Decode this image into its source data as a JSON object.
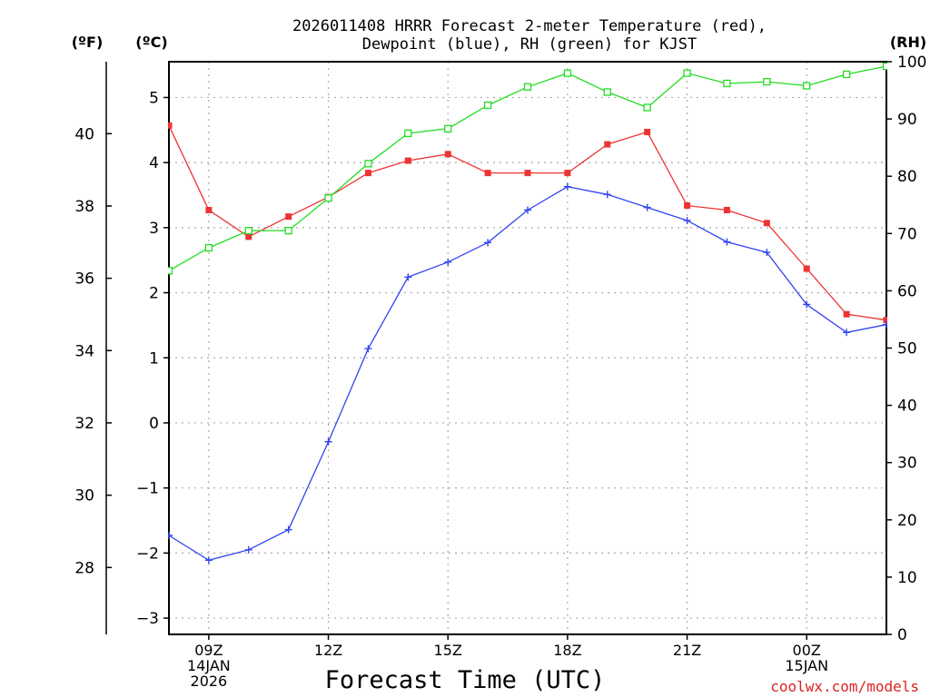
{
  "chart_data": {
    "type": "line",
    "title_line1": "2026011408 HRRR Forecast 2-meter Temperature (red),",
    "title_line2": "Dewpoint (blue), RH (green) for KJST",
    "xlabel": "Forecast Time (UTC)",
    "left_outer_label": "(ºF)",
    "left_inner_label": "(ºC)",
    "right_label": "(RH)",
    "credit": "coolwx.com/models",
    "x": [
      8,
      9,
      10,
      11,
      12,
      13,
      14,
      15,
      16,
      17,
      18,
      19,
      20,
      21,
      22,
      23,
      24,
      25,
      26
    ],
    "xlim": [
      8,
      26
    ],
    "x_ticks": [
      {
        "x": 9,
        "labels": [
          "09Z",
          "14JAN",
          "2026"
        ]
      },
      {
        "x": 12,
        "labels": [
          "12Z"
        ]
      },
      {
        "x": 15,
        "labels": [
          "15Z"
        ]
      },
      {
        "x": 18,
        "labels": [
          "18Z"
        ]
      },
      {
        "x": 21,
        "labels": [
          "21Z"
        ]
      },
      {
        "x": 24,
        "labels": [
          "00Z",
          "15JAN"
        ]
      }
    ],
    "celsius_axis": {
      "ylim": [
        -3.25,
        5.55
      ],
      "ticks": [
        -3,
        -2,
        -1,
        0,
        1,
        2,
        3,
        4,
        5
      ]
    },
    "fahrenheit_axis": {
      "ticks": [
        28,
        30,
        32,
        34,
        36,
        38,
        40
      ]
    },
    "rh_axis": {
      "ylim": [
        0,
        100
      ],
      "ticks": [
        0,
        10,
        20,
        30,
        40,
        50,
        60,
        70,
        80,
        90,
        100
      ]
    },
    "series": [
      {
        "name": "Temperature",
        "axis": "celsius",
        "color": "#ee3333",
        "marker": "filled-square",
        "values": [
          4.57,
          3.27,
          2.86,
          3.17,
          3.47,
          3.84,
          4.03,
          4.13,
          3.84,
          3.84,
          3.84,
          4.28,
          4.47,
          3.34,
          3.27,
          3.07,
          2.37,
          1.67,
          1.58
        ]
      },
      {
        "name": "Dewpoint",
        "axis": "celsius",
        "color": "#3344ee",
        "marker": "plus",
        "values": [
          -1.73,
          -2.11,
          -1.95,
          -1.64,
          -0.29,
          1.14,
          2.24,
          2.47,
          2.77,
          3.27,
          3.63,
          3.51,
          3.31,
          3.11,
          2.78,
          2.62,
          1.82,
          1.39,
          1.51
        ]
      },
      {
        "name": "RH",
        "axis": "rh",
        "color": "#22dd22",
        "marker": "open-square",
        "values": [
          63.5,
          67.5,
          70.5,
          70.5,
          76.2,
          82.2,
          87.5,
          88.3,
          92.4,
          95.6,
          98.0,
          94.7,
          92.0,
          98.0,
          96.2,
          96.5,
          95.8,
          97.8,
          99.2
        ]
      }
    ]
  }
}
